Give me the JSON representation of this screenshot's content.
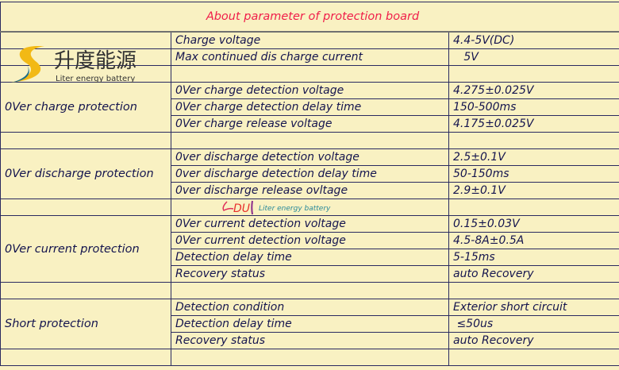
{
  "title": "About parameter of protection board",
  "logo": {
    "cn_name": "升度能源",
    "en_name": "Liter energy battery"
  },
  "stamp": {
    "text": "Liter energy battery",
    "mark": "DU"
  },
  "sections": [
    {
      "label": "",
      "rows": [
        {
          "param": "Charge voltage",
          "value": "4.4-5V(DC)"
        },
        {
          "param": "Max continued dis charge current",
          "value": "   5V"
        }
      ]
    },
    {
      "label": "0Ver charge protection",
      "rows": [
        {
          "param": "0Ver charge detection voltage",
          "value": "4.275±0.025V"
        },
        {
          "param": "0Ver charge detection delay time",
          "value": "150-500ms"
        },
        {
          "param": "0Ver charge release voltage",
          "value": "4.175±0.025V"
        }
      ]
    },
    {
      "label": "0Ver discharge protection",
      "rows": [
        {
          "param": "0ver discharge detection voltage",
          "value": "2.5±0.1V"
        },
        {
          "param": "0ver discharge detection delay time",
          "value": "50-150ms"
        },
        {
          "param": "0ver discharge release ovltage",
          "value": "2.9±0.1V"
        }
      ]
    },
    {
      "label": "0Ver current protection",
      "rows": [
        {
          "param": "0Ver current detection voltage",
          "value": "0.15±0.03V"
        },
        {
          "param": "0Ver current detection voltage",
          "value": "4.5-8A±0.5A"
        },
        {
          "param": "Detection delay time",
          "value": "5-15ms"
        },
        {
          "param": "Recovery status",
          "value": "auto Recovery"
        }
      ]
    },
    {
      "label": "Short protection",
      "rows": [
        {
          "param": "Detection condition",
          "value": "Exterior short circuit"
        },
        {
          "param": "Detection delay time",
          "value": " ≤50us"
        },
        {
          "param": "Recovery status",
          "value": "auto Recovery"
        }
      ]
    }
  ],
  "colors": {
    "background": "#f9f1c2",
    "text": "#14144e",
    "title": "#f01e4a",
    "grid": "#2a2a60"
  }
}
